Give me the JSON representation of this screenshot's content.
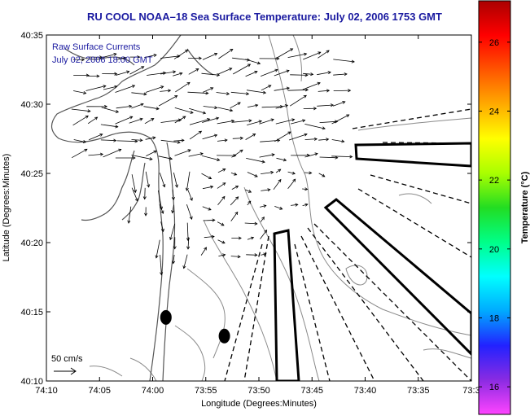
{
  "chart_data": {
    "type": "vector-field",
    "title": "RU COOL  NOAA–18  Sea Surface Temperature:  July 02, 2006 1753 GMT",
    "xlabel": "Longitude (Degrees:Minutes)",
    "ylabel": "Latitude (Degrees:Minutes)",
    "legend_lines": [
      "Raw Surface Currents",
      "July 02, 2006 18:00 GMT"
    ],
    "scale_label": "50 cm/s",
    "x_ticks": [
      "74:10",
      "74:05",
      "74:00",
      "73:55",
      "73:50",
      "73:45",
      "73:40",
      "73:35",
      "73:3"
    ],
    "y_ticks": [
      "40:35",
      "40:30",
      "40:25",
      "40:20",
      "40:15",
      "40:10"
    ],
    "xlim": [
      -74.1667,
      -73.5
    ],
    "ylim": [
      40.1667,
      40.5833
    ],
    "grid": false,
    "colorbar": {
      "label": "Temperature (°C)",
      "ticks": [
        "26",
        "24",
        "22",
        "20",
        "18",
        "16"
      ],
      "range": [
        15.2,
        27.2
      ],
      "colors": [
        "#ff44ff",
        "#8a2be2",
        "#2222ff",
        "#00aaff",
        "#00ffff",
        "#00ff88",
        "#22dd22",
        "#aaff00",
        "#ffff00",
        "#ffaa00",
        "#ff5500",
        "#ff0000",
        "#aa0000"
      ]
    },
    "stations": [
      {
        "name": "station-west",
        "lon": -73.9792,
        "lat": 40.2433
      },
      {
        "name": "station-east",
        "lon": -73.8875,
        "lat": 40.2208
      }
    ],
    "vector_field": {
      "lon_min": -74.125,
      "lon_max": -73.65,
      "lat_min": 40.2,
      "lat_max": 40.575,
      "nx": 22,
      "ny": 20
    }
  }
}
